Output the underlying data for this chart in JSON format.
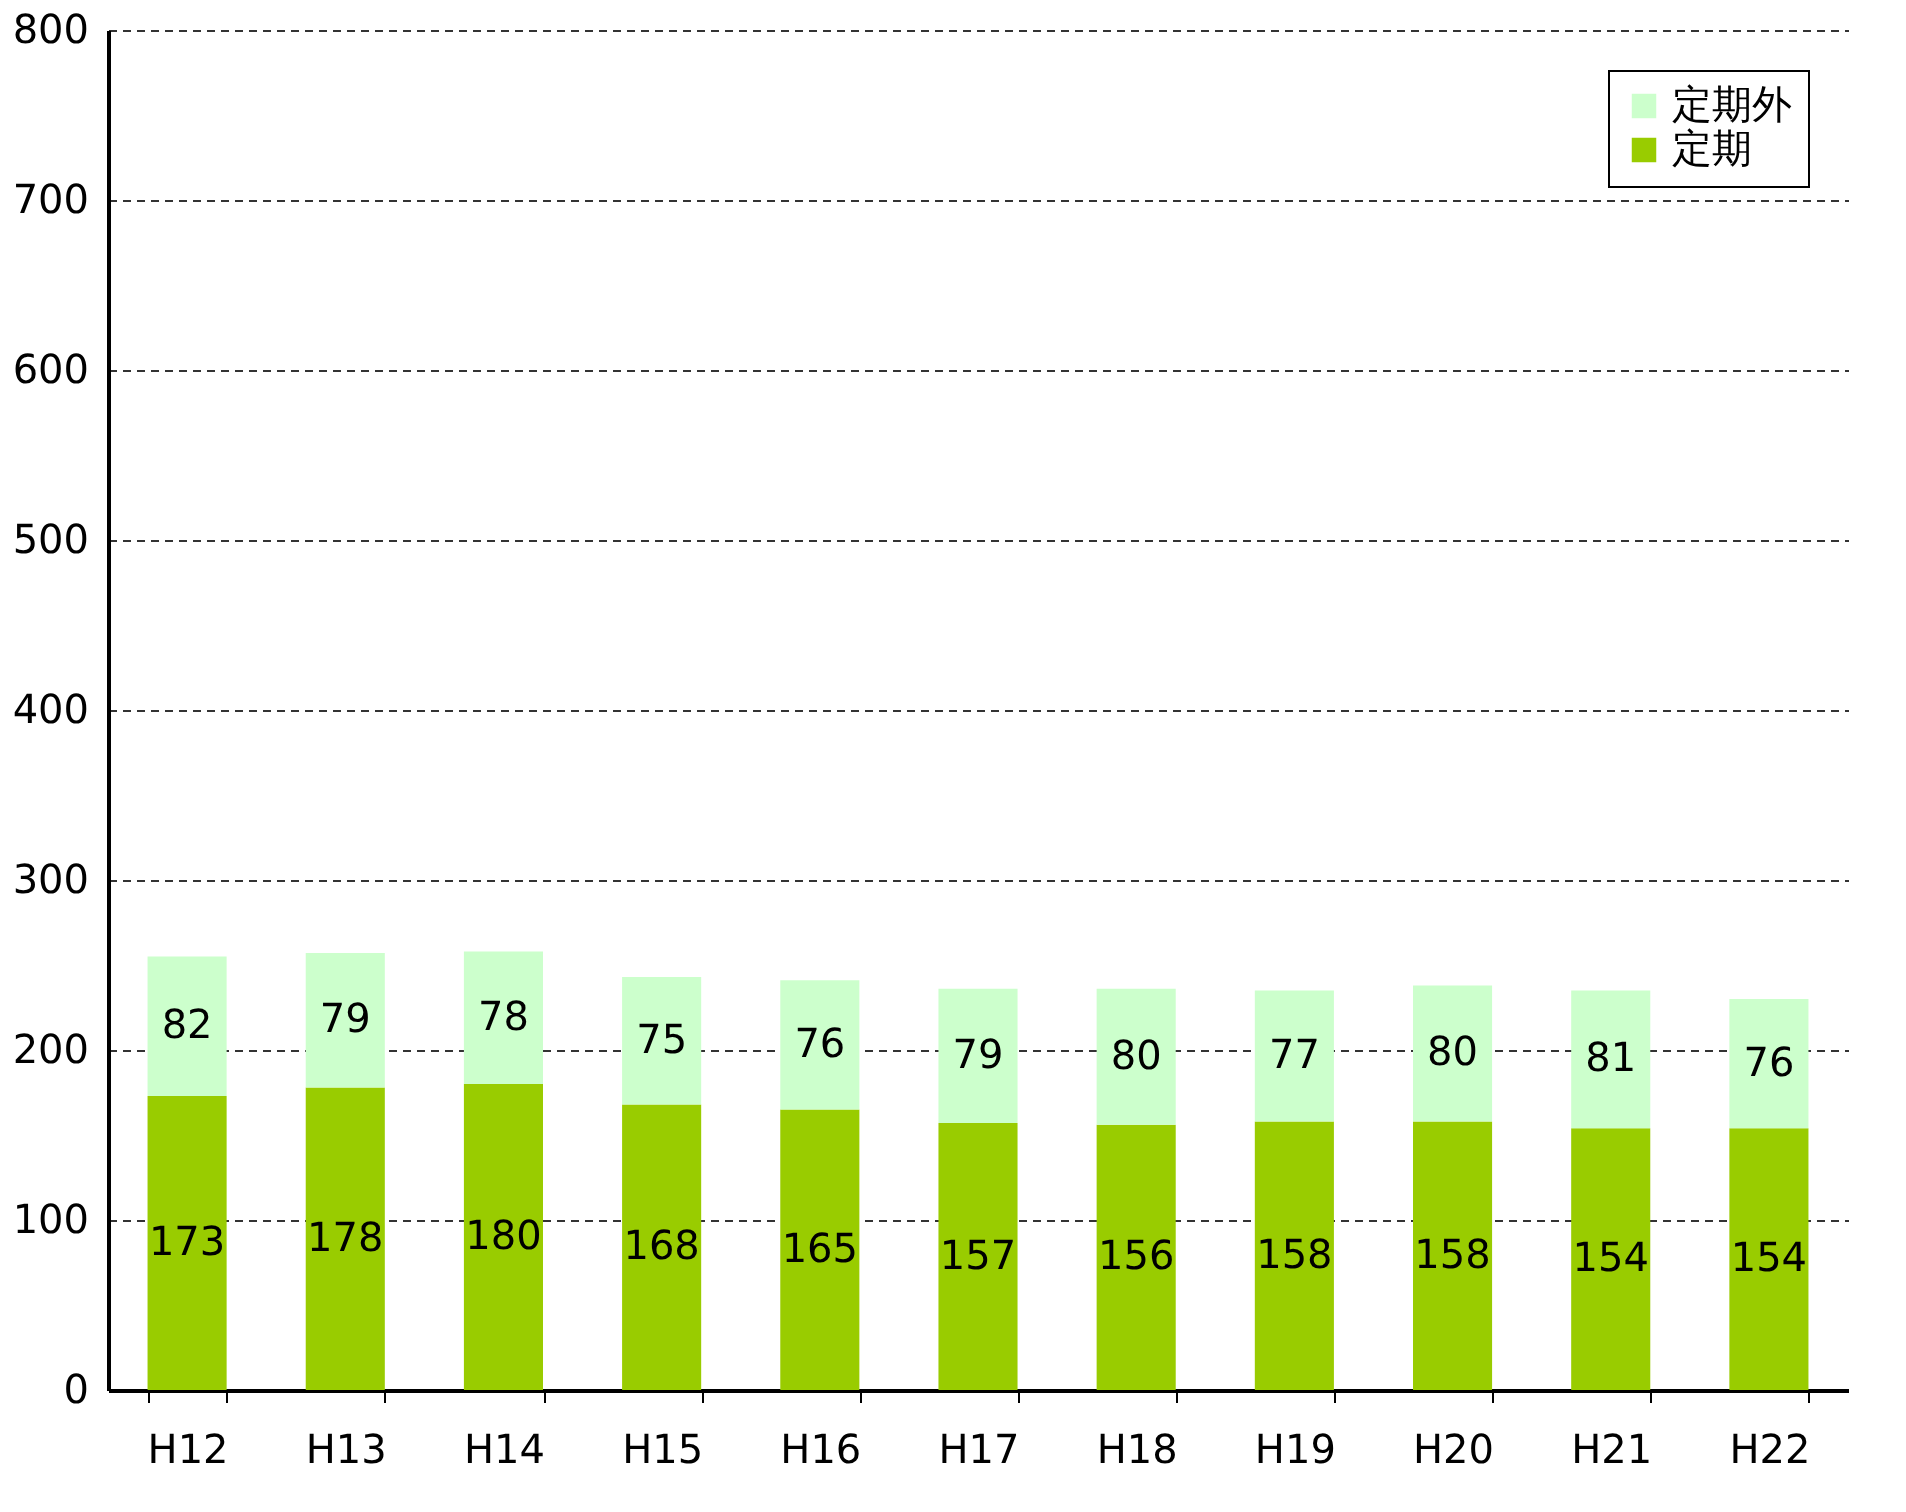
{
  "chart_data": {
    "type": "bar",
    "stacked": true,
    "categories": [
      "H12",
      "H13",
      "H14",
      "H15",
      "H16",
      "H17",
      "H18",
      "H19",
      "H20",
      "H21",
      "H22"
    ],
    "series": [
      {
        "name": "定期",
        "color": "#99cc00",
        "values": [
          173,
          178,
          180,
          168,
          165,
          157,
          156,
          158,
          158,
          154,
          154
        ]
      },
      {
        "name": "定期外",
        "color": "#ccffcc",
        "values": [
          82,
          79,
          78,
          75,
          76,
          79,
          80,
          77,
          80,
          81,
          76
        ]
      }
    ],
    "ylim": [
      0,
      800
    ],
    "yticks": [
      0,
      100,
      200,
      300,
      400,
      500,
      600,
      700,
      800
    ],
    "grid": "y",
    "legend": "top right",
    "data_labels": true
  }
}
